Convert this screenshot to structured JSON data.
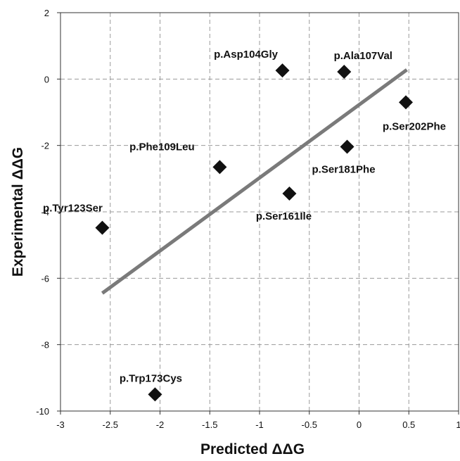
{
  "chart_data": {
    "type": "scatter",
    "xlabel": "Predicted ΔΔG",
    "ylabel": "Experimental ΔΔG",
    "xlim": [
      -3,
      1
    ],
    "ylim": [
      -10,
      2
    ],
    "x_ticks": [
      -3,
      -2.5,
      -2,
      -1.5,
      -1,
      -0.5,
      0,
      0.5,
      1
    ],
    "y_ticks": [
      -10,
      -8,
      -6,
      -4,
      -2,
      0,
      2
    ],
    "x_tick_labels": [
      "-3",
      "-2.5",
      "-2",
      "-1.5",
      "-1",
      "-0.5",
      "0",
      "0.5",
      "1"
    ],
    "y_tick_labels": [
      "-10",
      "-8",
      "-6",
      "-4",
      "-2",
      "0",
      "2"
    ],
    "grid": true,
    "points": [
      {
        "label": "p.Asp104Gly",
        "x": -0.77,
        "y": 0.26
      },
      {
        "label": "p.Ala107Val",
        "x": -0.15,
        "y": 0.22
      },
      {
        "label": "p.Ser202Phe",
        "x": 0.47,
        "y": -0.7
      },
      {
        "label": "p.Phe109Leu",
        "x": -1.4,
        "y": -2.65
      },
      {
        "label": "p.Ser181Phe",
        "x": -0.12,
        "y": -2.04
      },
      {
        "label": "p.Ser161Ile",
        "x": -0.7,
        "y": -3.45
      },
      {
        "label": "p.Tyr123Ser",
        "x": -2.58,
        "y": -4.48
      },
      {
        "label": "p.Trp173Cys",
        "x": -2.05,
        "y": -9.5
      }
    ],
    "trendline": {
      "x": [
        -2.58,
        0.48
      ],
      "y": [
        -6.45,
        0.28
      ]
    },
    "colors": {
      "marker": "#111111",
      "trendline": "#7a7a7a",
      "grid": "#9a9a9a",
      "axis": "#333333"
    }
  }
}
